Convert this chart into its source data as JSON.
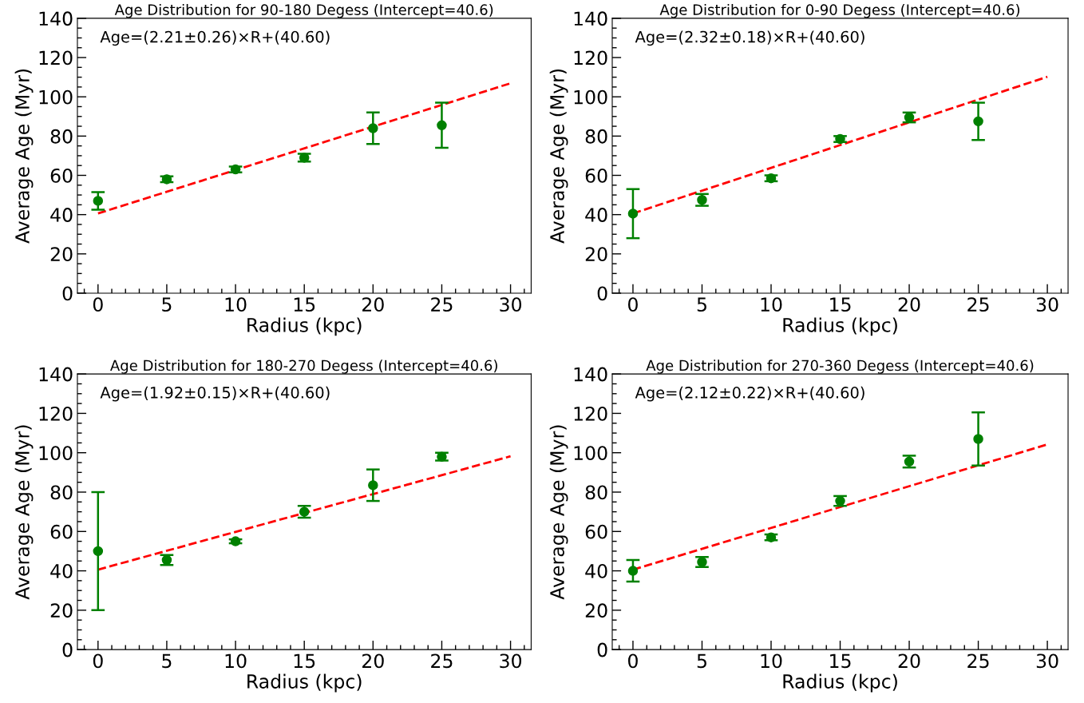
{
  "chart_data": [
    {
      "type": "scatter",
      "title": "Age Distribution for 90-180 Degess (Intercept=40.6)",
      "xlabel": "Radius (kpc)",
      "ylabel": "Average Age (Myr)",
      "xlim": [
        -1.5,
        31.5
      ],
      "xticks": [
        0,
        5,
        10,
        15,
        20,
        25,
        30
      ],
      "ylim": [
        0,
        140
      ],
      "yticks": [
        0,
        20,
        40,
        60,
        80,
        100,
        120,
        140
      ],
      "grid": false,
      "annotations": [
        "Age=(2.21±0.26)×R+(40.60)"
      ],
      "series": [
        {
          "color": "#008000",
          "marker": "circle",
          "x": [
            0,
            5,
            10,
            15,
            20,
            25
          ],
          "values": [
            47,
            58,
            63,
            69,
            84,
            85.5
          ],
          "errors": [
            4.5,
            1.5,
            1.5,
            2,
            8,
            11.5
          ]
        },
        {
          "type": "line",
          "color": "#ff0000",
          "line_style": "dashed",
          "x": [
            0,
            30
          ],
          "values": [
            40.6,
            106.9
          ]
        }
      ]
    },
    {
      "type": "scatter",
      "title": "Age Distribution for 0-90 Degess (Intercept=40.6)",
      "xlabel": "Radius (kpc)",
      "ylabel": "Average Age (Myr)",
      "xlim": [
        -1.5,
        31.5
      ],
      "xticks": [
        0,
        5,
        10,
        15,
        20,
        25,
        30
      ],
      "ylim": [
        0,
        140
      ],
      "yticks": [
        0,
        20,
        40,
        60,
        80,
        100,
        120,
        140
      ],
      "grid": false,
      "annotations": [
        "Age=(2.32±0.18)×R+(40.60)"
      ],
      "series": [
        {
          "color": "#008000",
          "marker": "circle",
          "x": [
            0,
            5,
            10,
            15,
            20,
            25
          ],
          "values": [
            40.5,
            47.5,
            58.5,
            78.5,
            89.5,
            87.5
          ],
          "errors": [
            12.5,
            3,
            1.5,
            1.5,
            2.5,
            9.5
          ]
        },
        {
          "type": "line",
          "color": "#ff0000",
          "line_style": "dashed",
          "x": [
            0,
            30
          ],
          "values": [
            40.6,
            110.2
          ]
        }
      ]
    },
    {
      "type": "scatter",
      "title": "Age Distribution for 180-270 Degess (Intercept=40.6)",
      "xlabel": "Radius (kpc)",
      "ylabel": "Average Age (Myr)",
      "xlim": [
        -1.5,
        31.5
      ],
      "xticks": [
        0,
        5,
        10,
        15,
        20,
        25,
        30
      ],
      "ylim": [
        0,
        140
      ],
      "yticks": [
        0,
        20,
        40,
        60,
        80,
        100,
        120,
        140
      ],
      "grid": false,
      "annotations": [
        "Age=(1.92±0.15)×R+(40.60)"
      ],
      "series": [
        {
          "color": "#008000",
          "marker": "circle",
          "x": [
            0,
            5,
            10,
            15,
            20,
            25
          ],
          "values": [
            50,
            45.5,
            55,
            70,
            83.5,
            98
          ],
          "errors": [
            30,
            2.5,
            1,
            3,
            8,
            2
          ]
        },
        {
          "type": "line",
          "color": "#ff0000",
          "line_style": "dashed",
          "x": [
            0,
            30
          ],
          "values": [
            40.6,
            98.2
          ]
        }
      ]
    },
    {
      "type": "scatter",
      "title": "Age Distribution for 270-360 Degess (Intercept=40.6)",
      "xlabel": "Radius (kpc)",
      "ylabel": "Average Age (Myr)",
      "xlim": [
        -1.5,
        31.5
      ],
      "xticks": [
        0,
        5,
        10,
        15,
        20,
        25,
        30
      ],
      "ylim": [
        0,
        140
      ],
      "yticks": [
        0,
        20,
        40,
        60,
        80,
        100,
        120,
        140
      ],
      "grid": false,
      "annotations": [
        "Age=(2.12±0.22)×R+(40.60)"
      ],
      "series": [
        {
          "color": "#008000",
          "marker": "circle",
          "x": [
            0,
            5,
            10,
            15,
            20,
            25
          ],
          "values": [
            40,
            44.5,
            57,
            75.5,
            95.5,
            107
          ],
          "errors": [
            5.5,
            2.5,
            1.5,
            2.5,
            3,
            13.5
          ]
        },
        {
          "type": "line",
          "color": "#ff0000",
          "line_style": "dashed",
          "x": [
            0,
            30
          ],
          "values": [
            40.6,
            104.2
          ]
        }
      ]
    }
  ]
}
